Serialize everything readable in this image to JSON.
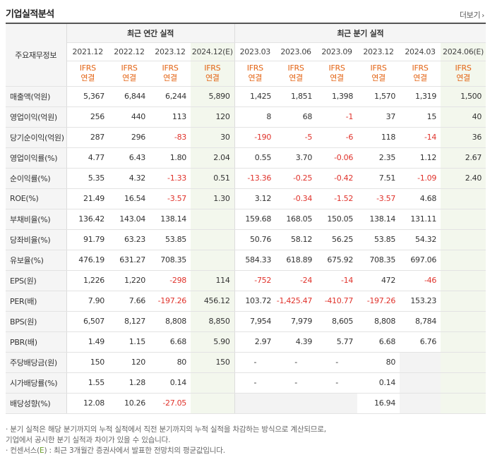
{
  "header": {
    "title": "기업실적분석",
    "more_label": "더보기",
    "more_icon": "chevron-right-icon"
  },
  "table": {
    "row_header_label": "주요재무정보",
    "group_annual": "최근 연간 실적",
    "group_quarter": "최근 분기 실적",
    "periods": [
      "2021.12",
      "2022.12",
      "2023.12",
      "2024.12(E)",
      "2023.03",
      "2023.06",
      "2023.09",
      "2023.12",
      "2024.03",
      "2024.06(E)"
    ],
    "basis_line1": "IFRS",
    "basis_line2": "연결",
    "rows": [
      {
        "label": "매출액(억원)",
        "values": [
          "5,367",
          "6,844",
          "6,244",
          "5,890",
          "1,425",
          "1,851",
          "1,398",
          "1,570",
          "1,319",
          "1,500"
        ]
      },
      {
        "label": "영업이익(억원)",
        "values": [
          "256",
          "440",
          "113",
          "120",
          "8",
          "68",
          "-1",
          "37",
          "15",
          "40"
        ]
      },
      {
        "label": "당기순이익(억원)",
        "values": [
          "287",
          "296",
          "-83",
          "30",
          "-190",
          "-5",
          "-6",
          "118",
          "-14",
          "36"
        ]
      },
      {
        "label": "영업이익률(%)",
        "values": [
          "4.77",
          "6.43",
          "1.80",
          "2.04",
          "0.55",
          "3.70",
          "-0.06",
          "2.35",
          "1.12",
          "2.67"
        ]
      },
      {
        "label": "순이익률(%)",
        "values": [
          "5.35",
          "4.32",
          "-1.33",
          "0.51",
          "-13.36",
          "-0.25",
          "-0.42",
          "7.51",
          "-1.09",
          "2.40"
        ]
      },
      {
        "label": "ROE(%)",
        "values": [
          "21.49",
          "16.54",
          "-3.57",
          "1.30",
          "3.12",
          "-0.34",
          "-1.52",
          "-3.57",
          "4.68",
          ""
        ]
      },
      {
        "label": "부채비율(%)",
        "values": [
          "136.42",
          "143.04",
          "138.14",
          "",
          "159.68",
          "168.05",
          "150.05",
          "138.14",
          "131.11",
          ""
        ]
      },
      {
        "label": "당좌비율(%)",
        "values": [
          "91.79",
          "63.23",
          "53.85",
          "",
          "50.76",
          "58.12",
          "56.25",
          "53.85",
          "54.32",
          ""
        ]
      },
      {
        "label": "유보율(%)",
        "values": [
          "476.19",
          "631.27",
          "708.35",
          "",
          "584.33",
          "618.89",
          "675.92",
          "708.35",
          "697.06",
          ""
        ]
      },
      {
        "label": "EPS(원)",
        "values": [
          "1,226",
          "1,220",
          "-298",
          "114",
          "-752",
          "-24",
          "-14",
          "472",
          "-46",
          ""
        ]
      },
      {
        "label": "PER(배)",
        "values": [
          "7.90",
          "7.66",
          "-197.26",
          "456.12",
          "103.72",
          "-1,425.47",
          "-410.77",
          "-197.26",
          "153.23",
          ""
        ]
      },
      {
        "label": "BPS(원)",
        "values": [
          "6,507",
          "8,127",
          "8,808",
          "8,850",
          "7,954",
          "7,979",
          "8,605",
          "8,808",
          "8,784",
          ""
        ]
      },
      {
        "label": "PBR(배)",
        "values": [
          "1.49",
          "1.15",
          "6.68",
          "5.90",
          "2.97",
          "4.39",
          "5.77",
          "6.68",
          "6.76",
          ""
        ]
      },
      {
        "label": "주당배당금(원)",
        "values": [
          "150",
          "120",
          "80",
          "150",
          "-",
          "-",
          "-",
          "80",
          "",
          ""
        ]
      },
      {
        "label": "시가배당률(%)",
        "values": [
          "1.55",
          "1.28",
          "0.14",
          "",
          "-",
          "-",
          "-",
          "0.14",
          "",
          ""
        ]
      },
      {
        "label": "배당성향(%)",
        "values": [
          "12.08",
          "10.26",
          "-27.05",
          "",
          "",
          "",
          "",
          "16.94",
          "",
          ""
        ]
      }
    ]
  },
  "notes": {
    "line1": "· 분기 실적은 해당 분기까지의 누적 실적에서 직전 분기까지의 누적 실적을 차감하는 방식으로 계산되므로,",
    "line2": "  기업에서 공시한 분기 실적과 차이가 있을 수 있습니다.",
    "line3_prefix": "· 컨센서스(",
    "line3_mark": "E",
    "line3_suffix": ") : 최근 3개월간 증권사에서 발표한 전망치의 평균값입니다."
  },
  "colors": {
    "negative": "#e0322b",
    "ifrs": "#e36414",
    "estimate_bg": "#f3f7ed",
    "estimate_mark": "#6a9e2a"
  }
}
